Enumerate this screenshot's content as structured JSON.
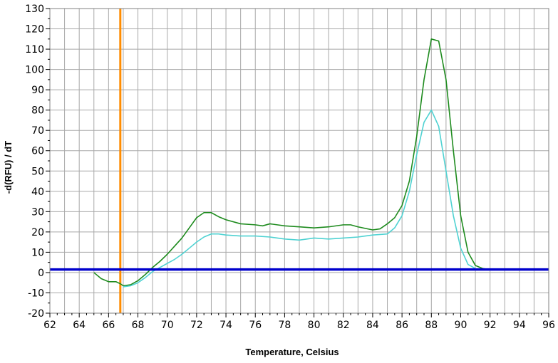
{
  "chart_data": {
    "type": "line",
    "title": "",
    "xlabel": "Temperature, Celsius",
    "ylabel": "-d(RFU) / dT",
    "xlim": [
      62,
      96
    ],
    "ylim": [
      -20,
      130
    ],
    "x_ticks": [
      62,
      64,
      66,
      68,
      70,
      72,
      74,
      76,
      78,
      80,
      82,
      84,
      86,
      88,
      90,
      92,
      94,
      96
    ],
    "y_ticks": [
      -20,
      -10,
      0,
      10,
      20,
      30,
      40,
      50,
      60,
      70,
      80,
      90,
      100,
      110,
      120,
      130
    ],
    "x_tick_labels": [
      "62",
      "64",
      "66",
      "68",
      "70",
      "72",
      "74",
      "76",
      "78",
      "80",
      "82",
      "84",
      "86",
      "88",
      "90",
      "92",
      "94",
      "96"
    ],
    "y_tick_labels": [
      "-20",
      "-10",
      "0",
      "10",
      "20",
      "30",
      "40",
      "50",
      "60",
      "70",
      "80",
      "90",
      "100",
      "110",
      "120",
      "130"
    ],
    "grid": true,
    "legend": "none",
    "vertical_marker": {
      "x": 66.8,
      "color": "#ff8c00"
    },
    "threshold_line": {
      "y": 1.5,
      "color": "#0000cc"
    },
    "series": [
      {
        "color": "#1e8b1e",
        "points": [
          [
            65.0,
            0.0
          ],
          [
            65.5,
            -3.0
          ],
          [
            66.0,
            -4.5
          ],
          [
            66.5,
            -4.5
          ],
          [
            66.8,
            -5.5
          ],
          [
            67.0,
            -6.5
          ],
          [
            67.5,
            -6.0
          ],
          [
            68.0,
            -4.0
          ],
          [
            68.5,
            -1.0
          ],
          [
            69.0,
            2.5
          ],
          [
            69.5,
            5.5
          ],
          [
            70.0,
            9.0
          ],
          [
            70.5,
            13.0
          ],
          [
            71.0,
            17.0
          ],
          [
            71.5,
            22.0
          ],
          [
            72.0,
            27.0
          ],
          [
            72.5,
            29.5
          ],
          [
            73.0,
            29.5
          ],
          [
            73.5,
            27.5
          ],
          [
            74.0,
            26.0
          ],
          [
            75.0,
            24.0
          ],
          [
            76.0,
            23.5
          ],
          [
            76.5,
            23.0
          ],
          [
            77.0,
            24.0
          ],
          [
            77.5,
            23.5
          ],
          [
            78.0,
            23.0
          ],
          [
            79.0,
            22.5
          ],
          [
            80.0,
            22.0
          ],
          [
            81.0,
            22.5
          ],
          [
            82.0,
            23.5
          ],
          [
            82.5,
            23.5
          ],
          [
            83.0,
            22.5
          ],
          [
            84.0,
            21.0
          ],
          [
            84.5,
            21.5
          ],
          [
            85.0,
            24.0
          ],
          [
            85.5,
            27.0
          ],
          [
            86.0,
            33.0
          ],
          [
            86.5,
            45.0
          ],
          [
            87.0,
            67.0
          ],
          [
            87.5,
            95.0
          ],
          [
            88.0,
            115.0
          ],
          [
            88.5,
            114.0
          ],
          [
            89.0,
            95.0
          ],
          [
            89.5,
            60.0
          ],
          [
            90.0,
            28.0
          ],
          [
            90.5,
            10.0
          ],
          [
            91.0,
            3.5
          ],
          [
            91.5,
            2.0
          ],
          [
            92.0,
            1.5
          ]
        ]
      },
      {
        "color": "#4fd2d2",
        "points": [
          [
            67.0,
            -7.0
          ],
          [
            67.5,
            -6.5
          ],
          [
            68.0,
            -5.0
          ],
          [
            68.5,
            -2.5
          ],
          [
            69.0,
            0.5
          ],
          [
            69.5,
            2.5
          ],
          [
            70.0,
            4.5
          ],
          [
            70.5,
            6.5
          ],
          [
            71.0,
            9.0
          ],
          [
            71.5,
            12.0
          ],
          [
            72.0,
            15.0
          ],
          [
            72.5,
            17.5
          ],
          [
            73.0,
            19.0
          ],
          [
            73.5,
            19.0
          ],
          [
            74.0,
            18.5
          ],
          [
            75.0,
            18.0
          ],
          [
            76.0,
            18.0
          ],
          [
            77.0,
            17.5
          ],
          [
            78.0,
            16.5
          ],
          [
            79.0,
            16.0
          ],
          [
            80.0,
            17.0
          ],
          [
            81.0,
            16.5
          ],
          [
            82.0,
            17.0
          ],
          [
            83.0,
            17.5
          ],
          [
            84.0,
            18.5
          ],
          [
            85.0,
            19.0
          ],
          [
            85.5,
            22.0
          ],
          [
            86.0,
            28.0
          ],
          [
            86.5,
            40.0
          ],
          [
            87.0,
            58.0
          ],
          [
            87.5,
            74.0
          ],
          [
            88.0,
            80.0
          ],
          [
            88.5,
            72.0
          ],
          [
            89.0,
            50.0
          ],
          [
            89.5,
            28.0
          ],
          [
            90.0,
            12.0
          ],
          [
            90.5,
            4.0
          ],
          [
            91.0,
            2.0
          ]
        ]
      }
    ]
  }
}
